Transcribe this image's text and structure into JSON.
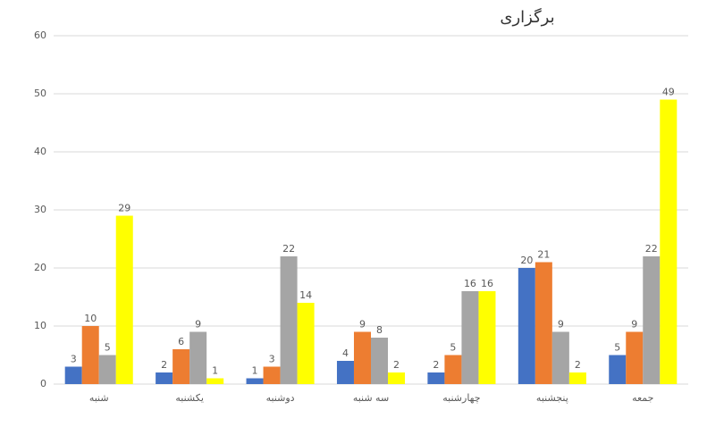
{
  "chart_data": {
    "type": "bar",
    "title": "برگزاری",
    "categories": [
      "شنبه",
      "یکشنبه",
      "دوشنبه",
      "سه شنبه",
      "چهارشنبه",
      "پنجشنبه",
      "جمعه"
    ],
    "series": [
      {
        "color": "#4472c4",
        "values": [
          3,
          2,
          1,
          4,
          2,
          20,
          5
        ]
      },
      {
        "color": "#ed7d31",
        "values": [
          10,
          6,
          3,
          9,
          5,
          21,
          9
        ]
      },
      {
        "color": "#a5a5a5",
        "values": [
          5,
          9,
          22,
          8,
          16,
          9,
          22
        ]
      },
      {
        "color": "#ffff00",
        "values": [
          29,
          1,
          14,
          2,
          16,
          2,
          49
        ]
      }
    ],
    "ylim": [
      0,
      60
    ],
    "yticks": [
      0,
      10,
      20,
      30,
      40,
      50,
      60
    ],
    "grid": true
  }
}
